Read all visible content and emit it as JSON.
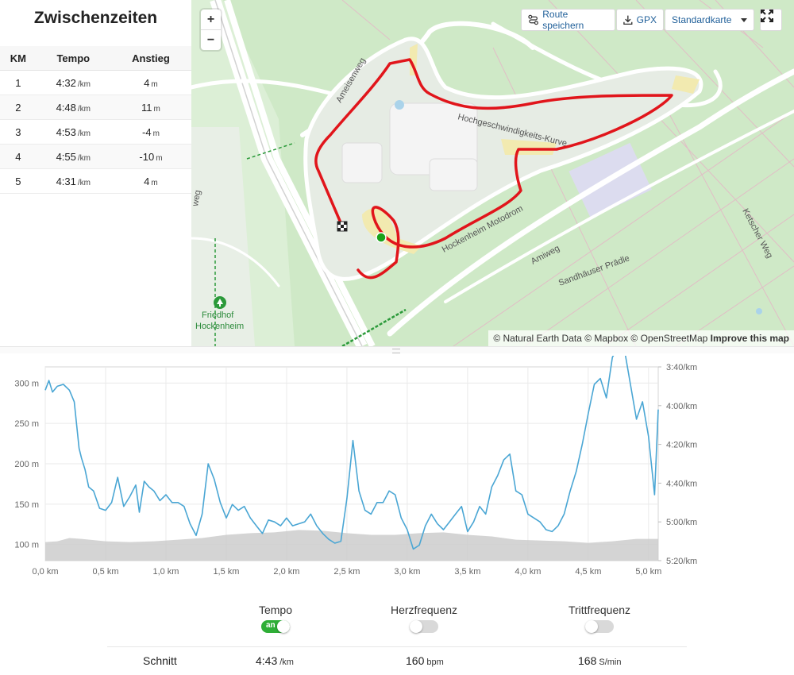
{
  "splits": {
    "title": "Zwischenzeiten",
    "columns": [
      "KM",
      "Tempo",
      "Anstieg"
    ],
    "rows": [
      {
        "km": "1",
        "pace": "4:32",
        "pace_unit": "/km",
        "climb": "4",
        "climb_unit": "m"
      },
      {
        "km": "2",
        "pace": "4:48",
        "pace_unit": "/km",
        "climb": "11",
        "climb_unit": "m"
      },
      {
        "km": "3",
        "pace": "4:53",
        "pace_unit": "/km",
        "climb": "-4",
        "climb_unit": "m"
      },
      {
        "km": "4",
        "pace": "4:55",
        "pace_unit": "/km",
        "climb": "-10",
        "climb_unit": "m"
      },
      {
        "km": "5",
        "pace": "4:31",
        "pace_unit": "/km",
        "climb": "4",
        "climb_unit": "m"
      }
    ]
  },
  "map": {
    "zoom_in": "+",
    "zoom_out": "−",
    "save_route": "Route speichern",
    "gpx": "GPX",
    "style_select": "Standardkarte",
    "attribution": "© Natural Earth Data © Mapbox © OpenStreetMap",
    "improve": "Improve this map",
    "labels": {
      "ameisenweg": "Ameisenweg",
      "hochgeschwindigkeit": "Hochgeschwindigkeits-Kurve",
      "motodrom": "Hockenheim Motodrom",
      "amiweg": "Amiweg",
      "sandhaeuser": "Sandhäuser Prädle",
      "ketscher": "Ketscher Weg",
      "weg_left": "weg",
      "friedhof_1": "Friedhof",
      "friedhof_2": "Hockenheim"
    },
    "colors": {
      "route": "#e1151b",
      "start_marker": "#1aa31a",
      "park": "#cfe9c7",
      "road": "#ffffff"
    }
  },
  "chart_data": {
    "type": "line",
    "x_label_ticks": [
      "0,0 km",
      "0,5 km",
      "1,0 km",
      "1,5 km",
      "2,0 km",
      "2,5 km",
      "3,0 km",
      "3,5 km",
      "4,0 km",
      "4,5 km",
      "5,0 km"
    ],
    "x_ticks": [
      0,
      0.5,
      1.0,
      1.5,
      2.0,
      2.5,
      3.0,
      3.5,
      4.0,
      4.5,
      5.0
    ],
    "xlim": [
      0,
      5.08
    ],
    "left_axis": {
      "unit": "m",
      "ticks": [
        "100 m",
        "150 m",
        "200 m",
        "250 m",
        "300 m"
      ],
      "tick_values": [
        100,
        150,
        200,
        250,
        300
      ],
      "ylim": [
        80,
        320
      ]
    },
    "right_axis": {
      "unit": "/km",
      "ticks": [
        "3:40/km",
        "4:00/km",
        "4:20/km",
        "4:40/km",
        "5:00/km",
        "5:20/km"
      ],
      "tick_values_sec": [
        220,
        240,
        260,
        280,
        300,
        320
      ],
      "reversed": true
    },
    "series": [
      {
        "kind": "area",
        "color": "#cccccc",
        "axis": "left",
        "x": [
          0,
          0.1,
          0.2,
          0.3,
          0.5,
          0.7,
          0.9,
          1.1,
          1.3,
          1.5,
          1.7,
          1.9,
          2.1,
          2.3,
          2.5,
          2.7,
          2.9,
          3.1,
          3.3,
          3.5,
          3.7,
          3.9,
          4.1,
          4.3,
          4.5,
          4.7,
          4.9,
          5.08
        ],
        "values": [
          103,
          104,
          108,
          107,
          104,
          103,
          104,
          106,
          108,
          112,
          114,
          115,
          118,
          117,
          114,
          112,
          112,
          114,
          115,
          112,
          110,
          106,
          105,
          104,
          102,
          104,
          107,
          107
        ]
      },
      {
        "kind": "line",
        "color": "#4aa6d4",
        "axis": "right",
        "x": [
          0,
          0.03,
          0.06,
          0.1,
          0.15,
          0.2,
          0.24,
          0.28,
          0.3,
          0.33,
          0.36,
          0.4,
          0.45,
          0.5,
          0.55,
          0.6,
          0.65,
          0.7,
          0.75,
          0.78,
          0.82,
          0.86,
          0.9,
          0.95,
          1.0,
          1.05,
          1.1,
          1.15,
          1.2,
          1.25,
          1.3,
          1.35,
          1.4,
          1.45,
          1.5,
          1.55,
          1.6,
          1.65,
          1.7,
          1.75,
          1.8,
          1.85,
          1.9,
          1.95,
          2.0,
          2.05,
          2.1,
          2.15,
          2.2,
          2.25,
          2.3,
          2.35,
          2.4,
          2.45,
          2.5,
          2.55,
          2.6,
          2.65,
          2.7,
          2.75,
          2.8,
          2.85,
          2.9,
          2.95,
          3.0,
          3.05,
          3.1,
          3.15,
          3.2,
          3.25,
          3.3,
          3.35,
          3.4,
          3.45,
          3.5,
          3.55,
          3.6,
          3.65,
          3.7,
          3.75,
          3.8,
          3.85,
          3.9,
          3.95,
          4.0,
          4.05,
          4.1,
          4.15,
          4.2,
          4.25,
          4.3,
          4.35,
          4.4,
          4.45,
          4.5,
          4.55,
          4.6,
          4.65,
          4.7,
          4.75,
          4.8,
          4.85,
          4.9,
          4.95,
          5.0,
          5.05,
          5.08
        ],
        "values": [
          232,
          227,
          233,
          230,
          229,
          232,
          238,
          262,
          267,
          273,
          282,
          284,
          293,
          294,
          290,
          277,
          292,
          287,
          281,
          295,
          279,
          282,
          284,
          289,
          286,
          290,
          290,
          292,
          301,
          307,
          296,
          270,
          278,
          290,
          298,
          291,
          294,
          292,
          298,
          302,
          306,
          299,
          300,
          302,
          298,
          302,
          301,
          300,
          296,
          302,
          306,
          309,
          311,
          310,
          288,
          258,
          284,
          294,
          296,
          290,
          290,
          284,
          286,
          298,
          304,
          314,
          312,
          302,
          296,
          301,
          304,
          300,
          296,
          292,
          305,
          300,
          292,
          296,
          282,
          276,
          268,
          265,
          284,
          286,
          296,
          298,
          300,
          304,
          305,
          302,
          296,
          284,
          274,
          260,
          244,
          229,
          226,
          236,
          215,
          210,
          211,
          229,
          247,
          238,
          256,
          286,
          242
        ]
      }
    ]
  },
  "controls": {
    "pace": {
      "label": "Tempo",
      "state": "an",
      "on": true
    },
    "hr": {
      "label": "Herzfrequenz",
      "on": false
    },
    "cadence": {
      "label": "Trittfrequenz",
      "on": false
    }
  },
  "stats": {
    "label": "Schnitt",
    "pace": "4:43",
    "pace_unit": "/km",
    "hr": "160",
    "hr_unit": "bpm",
    "cadence": "168",
    "cadence_unit": "S/min"
  }
}
